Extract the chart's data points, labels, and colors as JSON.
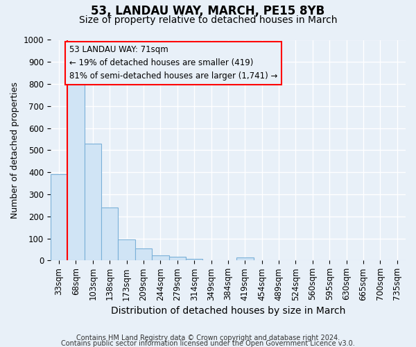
{
  "title": "53, LANDAU WAY, MARCH, PE15 8YB",
  "subtitle": "Size of property relative to detached houses in March",
  "xlabel": "Distribution of detached houses by size in March",
  "ylabel": "Number of detached properties",
  "bar_labels": [
    "33sqm",
    "68sqm",
    "103sqm",
    "138sqm",
    "173sqm",
    "209sqm",
    "244sqm",
    "279sqm",
    "314sqm",
    "349sqm",
    "384sqm",
    "419sqm",
    "454sqm",
    "489sqm",
    "524sqm",
    "560sqm",
    "595sqm",
    "630sqm",
    "665sqm",
    "700sqm",
    "735sqm"
  ],
  "bar_heights": [
    390,
    835,
    530,
    240,
    95,
    53,
    22,
    18,
    8,
    0,
    0,
    15,
    0,
    0,
    0,
    0,
    0,
    0,
    0,
    0,
    0
  ],
  "bar_color": "#d0e4f5",
  "bar_edge_color": "#7ab0d8",
  "red_line_x": 1,
  "ylim": [
    0,
    1000
  ],
  "yticks": [
    0,
    100,
    200,
    300,
    400,
    500,
    600,
    700,
    800,
    900,
    1000
  ],
  "annotation_text": "53 LANDAU WAY: 71sqm\n← 19% of detached houses are smaller (419)\n81% of semi-detached houses are larger (1,741) →",
  "footer1": "Contains HM Land Registry data © Crown copyright and database right 2024.",
  "footer2": "Contains public sector information licensed under the Open Government Licence v3.0.",
  "bg_color": "#e8f0f8",
  "grid_color": "#ffffff",
  "title_fontsize": 12,
  "subtitle_fontsize": 10,
  "xlabel_fontsize": 10,
  "ylabel_fontsize": 9,
  "tick_fontsize": 8.5,
  "annot_fontsize": 8.5,
  "footer_fontsize": 7
}
